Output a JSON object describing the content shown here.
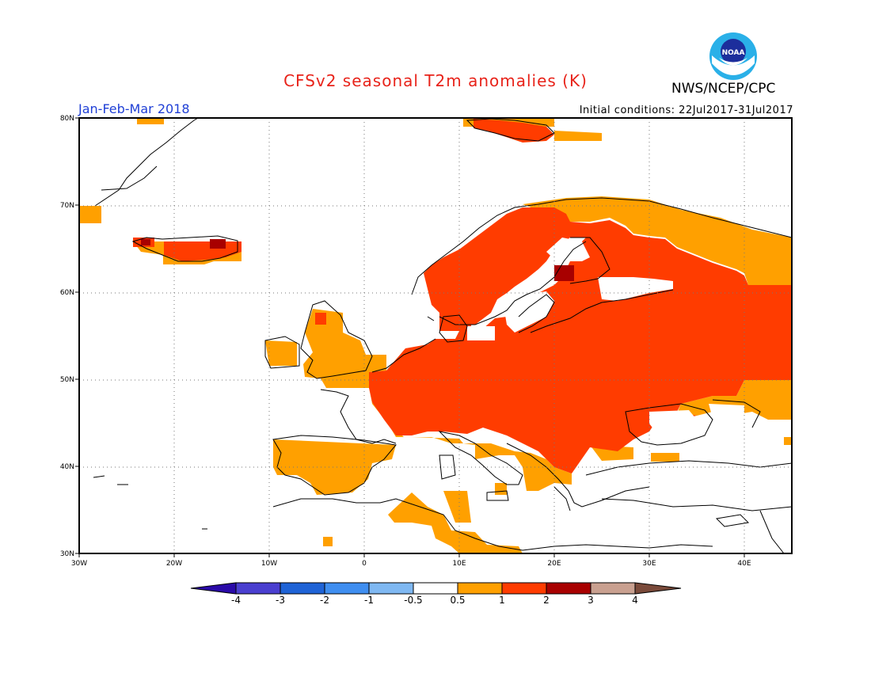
{
  "title": "CFSv2 seasonal T2m anomalies (K)",
  "organization": "NWS/NCEP/CPC",
  "logo_text": "NOAA",
  "forecast_period": "Jan-Feb-Mar 2018",
  "initial_conditions": "Initial conditions: 22Jul2017-31Jul2017",
  "map": {
    "region": "Europe",
    "lon_range": [
      -30,
      45
    ],
    "lat_range": [
      30,
      80
    ],
    "lat_ticks": [
      {
        "value": 80,
        "label": "80N"
      },
      {
        "value": 70,
        "label": "70N"
      },
      {
        "value": 60,
        "label": "60N"
      },
      {
        "value": 50,
        "label": "50N"
      },
      {
        "value": 40,
        "label": "40N"
      },
      {
        "value": 30,
        "label": "30N"
      }
    ],
    "lon_ticks": [
      {
        "value": -30,
        "label": "30W"
      },
      {
        "value": -20,
        "label": "20W"
      },
      {
        "value": -10,
        "label": "10W"
      },
      {
        "value": 0,
        "label": "0"
      },
      {
        "value": 10,
        "label": "10E"
      },
      {
        "value": 20,
        "label": "20E"
      },
      {
        "value": 30,
        "label": "30E"
      },
      {
        "value": 40,
        "label": "40E"
      }
    ],
    "gridlines": "dotted"
  },
  "colorbar": {
    "labels": [
      "-4",
      "-3",
      "-2",
      "-1",
      "-0.5",
      "0.5",
      "1",
      "2",
      "3",
      "4"
    ],
    "colors": [
      "#2a0aa8",
      "#4a3fd0",
      "#1f63d6",
      "#3f8ef0",
      "#7fb8f2",
      "#ffffff",
      "#ffa000",
      "#ff3c00",
      "#a80000",
      "#c9a090",
      "#7a4a3a"
    ]
  },
  "anomaly_colors": {
    "0.5-1": "#ffa000",
    "1-2": "#ff3c00",
    "2-3": "#a80000"
  }
}
